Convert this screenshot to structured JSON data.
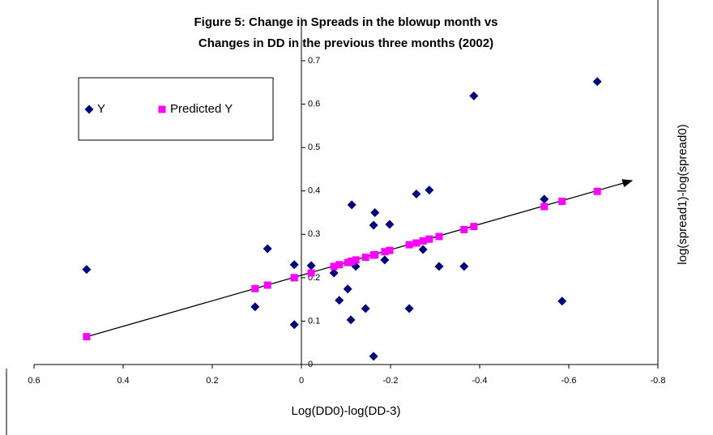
{
  "chart_data": {
    "type": "scatter",
    "title": "Figure 5: Change in Spreads in the blowup month vs",
    "subtitle": "Changes in DD in the previous three months (2002)",
    "x_label": "Log(DD0)-log(DD-3)",
    "y_label": "log(spread1)-log(spread0)",
    "xlim": [
      0.6,
      -0.8
    ],
    "xticks": [
      0.6,
      0.4,
      0.2,
      0,
      -0.2,
      -0.4,
      -0.6,
      -0.8
    ],
    "ylim": [
      0,
      0.7
    ],
    "yticks": [
      0,
      0.1,
      0.2,
      0.3,
      0.4,
      0.5,
      0.6,
      0.7
    ],
    "legend": "top-left",
    "series": [
      {
        "name": "Y",
        "color": "#000080",
        "marker": "diamond",
        "x": [
          0.482,
          0.076,
          0.016,
          0.016,
          0.104,
          -0.022,
          -0.073,
          -0.085,
          -0.104,
          -0.111,
          -0.113,
          -0.122,
          -0.144,
          -0.162,
          -0.165,
          -0.162,
          -0.187,
          -0.198,
          -0.242,
          -0.258,
          -0.273,
          -0.287,
          -0.309,
          -0.365,
          -0.387,
          -0.545,
          -0.585,
          -0.664
        ],
        "values": [
          0.219,
          0.267,
          0.23,
          0.092,
          0.133,
          0.228,
          0.211,
          0.148,
          0.174,
          0.103,
          0.368,
          0.226,
          0.129,
          0.321,
          0.35,
          0.019,
          0.241,
          0.323,
          0.129,
          0.393,
          0.265,
          0.402,
          0.226,
          0.226,
          0.619,
          0.381,
          0.146,
          0.652
        ]
      },
      {
        "name": "Predicted Y",
        "color": "#ff00ff",
        "marker": "square",
        "x": [
          0.482,
          0.076,
          0.016,
          0.016,
          0.104,
          -0.022,
          -0.073,
          -0.085,
          -0.104,
          -0.111,
          -0.113,
          -0.122,
          -0.144,
          -0.162,
          -0.165,
          -0.162,
          -0.187,
          -0.198,
          -0.242,
          -0.258,
          -0.273,
          -0.287,
          -0.309,
          -0.365,
          -0.387,
          -0.545,
          -0.585,
          -0.664
        ],
        "values": [
          0.064,
          0.183,
          0.2,
          0.2,
          0.175,
          0.211,
          0.226,
          0.23,
          0.235,
          0.237,
          0.238,
          0.241,
          0.247,
          0.252,
          0.253,
          0.252,
          0.26,
          0.263,
          0.276,
          0.28,
          0.285,
          0.289,
          0.295,
          0.311,
          0.318,
          0.364,
          0.376,
          0.399
        ]
      }
    ]
  }
}
